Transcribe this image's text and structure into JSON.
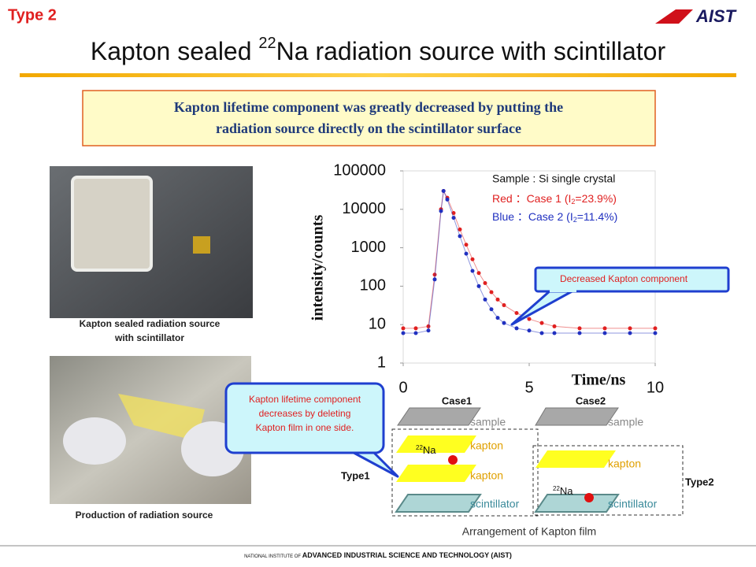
{
  "header": {
    "type_label": "Type 2",
    "logo": "AIST",
    "title": {
      "before": "Kapton sealed ",
      "sup": "22",
      "after": "Na radiation source with scintillator"
    }
  },
  "banner": [
    "Kapton lifetime component was greatly decreased by putting the",
    "radiation source directly on the scintillator surface"
  ],
  "photos": {
    "caption1": [
      "Kapton sealed radiation source",
      "with scintillator"
    ],
    "caption2": "Production of radiation source"
  },
  "chart_data": {
    "type": "scatter",
    "x": [
      0,
      0.5,
      1,
      1.25,
      1.5,
      1.6,
      1.75,
      2,
      2.25,
      2.5,
      2.75,
      3,
      3.25,
      3.5,
      3.75,
      4,
      4.5,
      5,
      5.5,
      6,
      7,
      8,
      9,
      10
    ],
    "series": [
      {
        "color": "#e02020",
        "values": [
          8,
          8,
          9,
          200,
          10000,
          30000,
          20000,
          8000,
          3000,
          1200,
          500,
          220,
          120,
          70,
          45,
          32,
          20,
          14,
          11,
          9,
          8,
          8,
          8,
          8
        ]
      },
      {
        "color": "#2030c0",
        "values": [
          6,
          6,
          7,
          150,
          9000,
          30000,
          18000,
          6000,
          2000,
          700,
          250,
          100,
          45,
          25,
          15,
          11,
          8,
          7,
          6,
          6,
          6,
          6,
          6,
          6
        ]
      }
    ],
    "xlim": [
      0,
      10
    ],
    "xticks": [
      0,
      5,
      10
    ],
    "ylim": [
      1,
      100000
    ],
    "yticks": [
      1,
      10,
      100,
      1000,
      10000,
      100000
    ],
    "yscale": "log",
    "x_label": "Time/ns",
    "y_label": "intensity/counts",
    "legend": {
      "sample": "Sample : Si single crystal",
      "red": {
        "prefix": "Red ：Case 1 (I",
        "sub": "2",
        "suffix": "=23.9%)"
      },
      "blue": {
        "prefix": "Blue ：Case 2 (I",
        "sub": "2",
        "suffix": "=11.4%)"
      }
    },
    "callout": "Decreased Kapton component"
  },
  "callout2": [
    "Kapton lifetime component",
    "decreases by deleting",
    "Kapton film in one side."
  ],
  "diagram": {
    "case1": {
      "label": "Case1",
      "sample": "sample",
      "kapton_top": "kapton",
      "kapton_bottom": "kapton",
      "na": {
        "sup": "22",
        "text": "Na"
      },
      "scintillator": "scintillator",
      "type": "Type1"
    },
    "case2": {
      "label": "Case2",
      "sample": "sample",
      "kapton": "kapton",
      "na": {
        "sup": "22",
        "text": "Na"
      },
      "scintillator": "scintillator",
      "type": "Type2"
    },
    "caption": "Arrangement of Kapton film"
  },
  "footer": {
    "small": "NATIONAL INSTITUTE OF ",
    "main": "ADVANCED INDUSTRIAL SCIENCE AND TECHNOLOGY (AIST)"
  }
}
